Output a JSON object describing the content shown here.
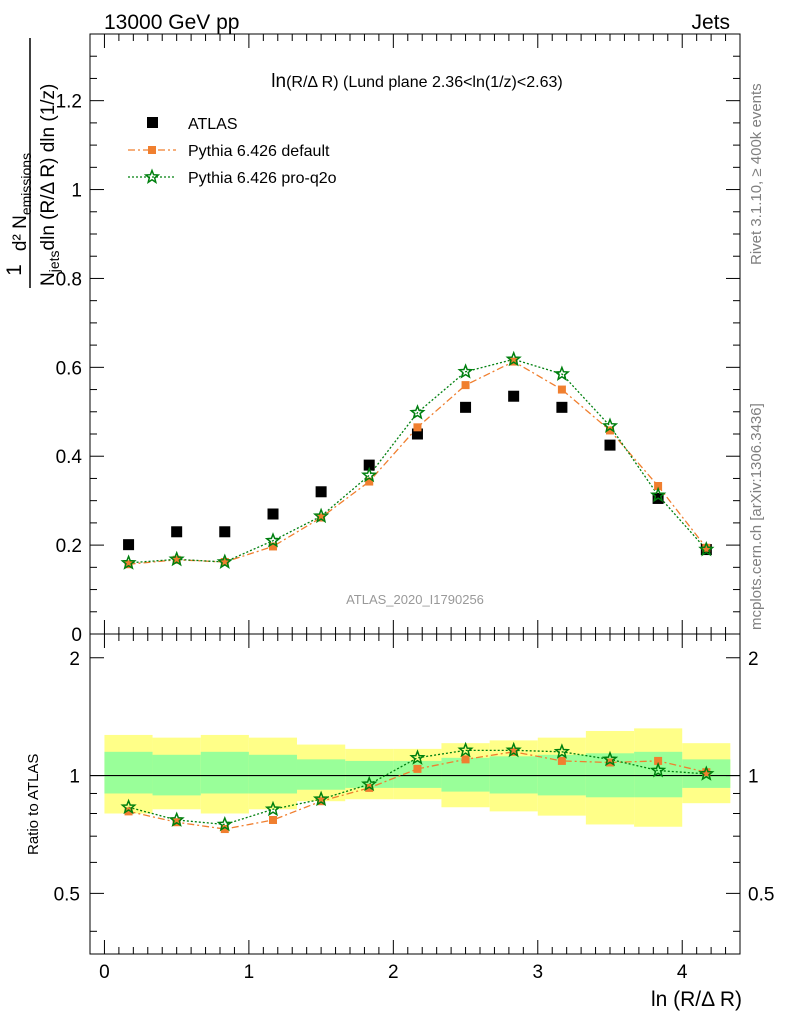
{
  "header": {
    "left": "13000 GeV pp",
    "right": "Jets"
  },
  "side_labels": {
    "rivet": "Rivet 3.1.10, ≥ 400k events",
    "mcplots": "mcplots.cern.ch [arXiv:1306.3436]"
  },
  "watermark": "ATLAS_2020_I1790256",
  "colors": {
    "atlas": "#000000",
    "default": "#f07f2f",
    "proq2o": "#00800f",
    "band_outer": "#ffff88",
    "band_inner": "#99ff99"
  },
  "chart_data": [
    {
      "type": "scatter",
      "title_main": "ln",
      "title_rest": "(R/Δ R) (Lund plane 2.36<ln(1/z)<2.63)",
      "xlabel": "ln (R/Δ R)",
      "ylabel_num": "1",
      "ylabel_d2": "d² N",
      "ylabel_emissions": "emissions",
      "ylabel_den_n": "N",
      "ylabel_jets": "jets",
      "ylabel_den_rest": "dln (R/Δ R) dln (1/z)",
      "xlim": [
        -0.1,
        4.4
      ],
      "ylim": [
        0,
        1.35
      ],
      "yticks": [
        "0",
        "0.2",
        "0.4",
        "0.6",
        "0.8",
        "1",
        "1.2"
      ],
      "x": [
        0.167,
        0.5,
        0.833,
        1.167,
        1.5,
        1.833,
        2.167,
        2.5,
        2.833,
        3.167,
        3.5,
        3.833,
        4.167
      ],
      "series": [
        {
          "name": "ATLAS",
          "marker": "square",
          "values": [
            0.201,
            0.23,
            0.23,
            0.27,
            0.32,
            0.38,
            0.45,
            0.51,
            0.535,
            0.51,
            0.425,
            0.305,
            0.19
          ]
        },
        {
          "name": "Pythia 6.426 default",
          "marker": "square-small",
          "line": "dashdot",
          "values": [
            0.157,
            0.167,
            0.162,
            0.197,
            0.262,
            0.343,
            0.465,
            0.56,
            0.613,
            0.55,
            0.458,
            0.333,
            0.194
          ]
        },
        {
          "name": "Pythia 6.426 pro-q2o",
          "marker": "star",
          "line": "dotted",
          "values": [
            0.16,
            0.168,
            0.162,
            0.21,
            0.265,
            0.357,
            0.498,
            0.59,
            0.618,
            0.585,
            0.468,
            0.312,
            0.19
          ]
        }
      ]
    },
    {
      "type": "line",
      "ylabel": "Ratio to ATLAS",
      "xlabel": "ln (R/Δ R)",
      "xlim": [
        -0.1,
        4.4
      ],
      "ylim": [
        0.35,
        2.3
      ],
      "yscale": "log",
      "yticks": [
        "0.5",
        "1",
        "2"
      ],
      "xticks": [
        "0",
        "1",
        "2",
        "3",
        "4"
      ],
      "x_edges": [
        0.0,
        0.333,
        0.667,
        1.0,
        1.333,
        1.667,
        2.0,
        2.333,
        2.667,
        3.0,
        3.333,
        3.667,
        4.0,
        4.333
      ],
      "band_outer": [
        [
          0.8,
          1.27
        ],
        [
          0.82,
          1.25
        ],
        [
          0.8,
          1.27
        ],
        [
          0.82,
          1.25
        ],
        [
          0.86,
          1.2
        ],
        [
          0.87,
          1.17
        ],
        [
          0.87,
          1.17
        ],
        [
          0.83,
          1.21
        ],
        [
          0.81,
          1.23
        ],
        [
          0.79,
          1.25
        ],
        [
          0.75,
          1.3
        ],
        [
          0.74,
          1.32
        ],
        [
          0.85,
          1.21
        ]
      ],
      "band_inner": [
        [
          0.9,
          1.15
        ],
        [
          0.89,
          1.13
        ],
        [
          0.9,
          1.15
        ],
        [
          0.9,
          1.13
        ],
        [
          0.92,
          1.1
        ],
        [
          0.93,
          1.09
        ],
        [
          0.93,
          1.09
        ],
        [
          0.91,
          1.11
        ],
        [
          0.9,
          1.12
        ],
        [
          0.89,
          1.13
        ],
        [
          0.88,
          1.14
        ],
        [
          0.88,
          1.15
        ],
        [
          0.93,
          1.1
        ]
      ],
      "series": [
        {
          "name": "Pythia 6.426 default",
          "values": [
            0.81,
            0.76,
            0.73,
            0.77,
            0.86,
            0.93,
            1.04,
            1.1,
            1.15,
            1.09,
            1.08,
            1.09,
            1.02
          ]
        },
        {
          "name": "Pythia 6.426 pro-q2o",
          "values": [
            0.83,
            0.77,
            0.75,
            0.82,
            0.87,
            0.95,
            1.11,
            1.16,
            1.16,
            1.15,
            1.1,
            1.03,
            1.01
          ]
        }
      ]
    }
  ]
}
